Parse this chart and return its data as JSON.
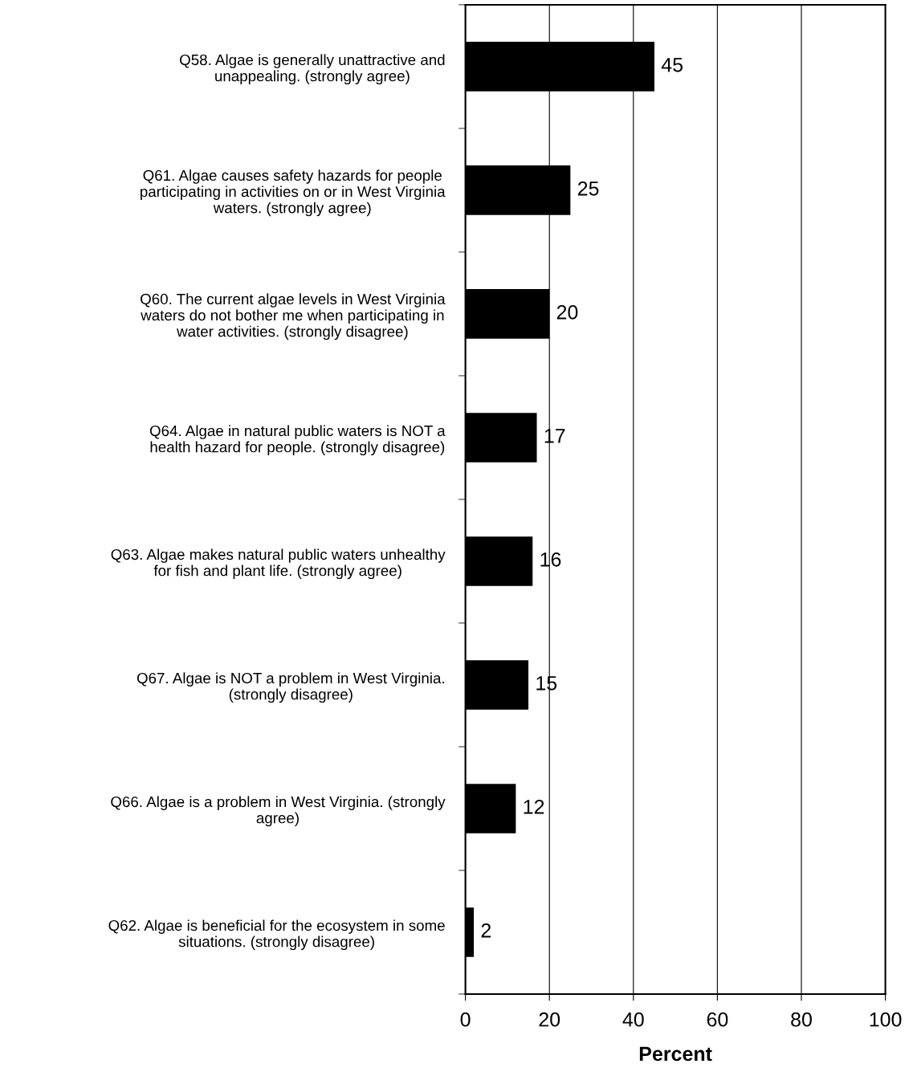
{
  "chart_data": {
    "type": "bar",
    "orientation": "horizontal",
    "categories": [
      "Q58. Algae is generally unattractive and\nunappealing. (strongly agree)",
      "Q61. Algae causes safety hazards for people\nparticipating in activities on or in West Virginia\nwaters. (strongly agree)",
      "Q60. The current algae levels in West Virginia\nwaters do not bother me when participating in\nwater activities. (strongly disagree)",
      "Q64. Algae in natural public waters is NOT a\nhealth hazard for people. (strongly disagree)",
      "Q63. Algae makes natural public waters unhealthy\nfor fish and plant life. (strongly agree)",
      "Q67. Algae is NOT a problem in West Virginia.\n(strongly disagree)",
      "Q66. Algae is a problem in West Virginia. (strongly\nagree)",
      "Q62. Algae is beneficial for the ecosystem in some\nsituations. (strongly disagree)"
    ],
    "values": [
      45,
      25,
      20,
      17,
      16,
      15,
      12,
      2
    ],
    "color": "#000000",
    "xlabel": "Percent",
    "xlim": [
      0,
      100
    ],
    "xticks": [
      0,
      20,
      40,
      60,
      80,
      100
    ],
    "grid": "x",
    "data_labels": true,
    "legend": false
  }
}
